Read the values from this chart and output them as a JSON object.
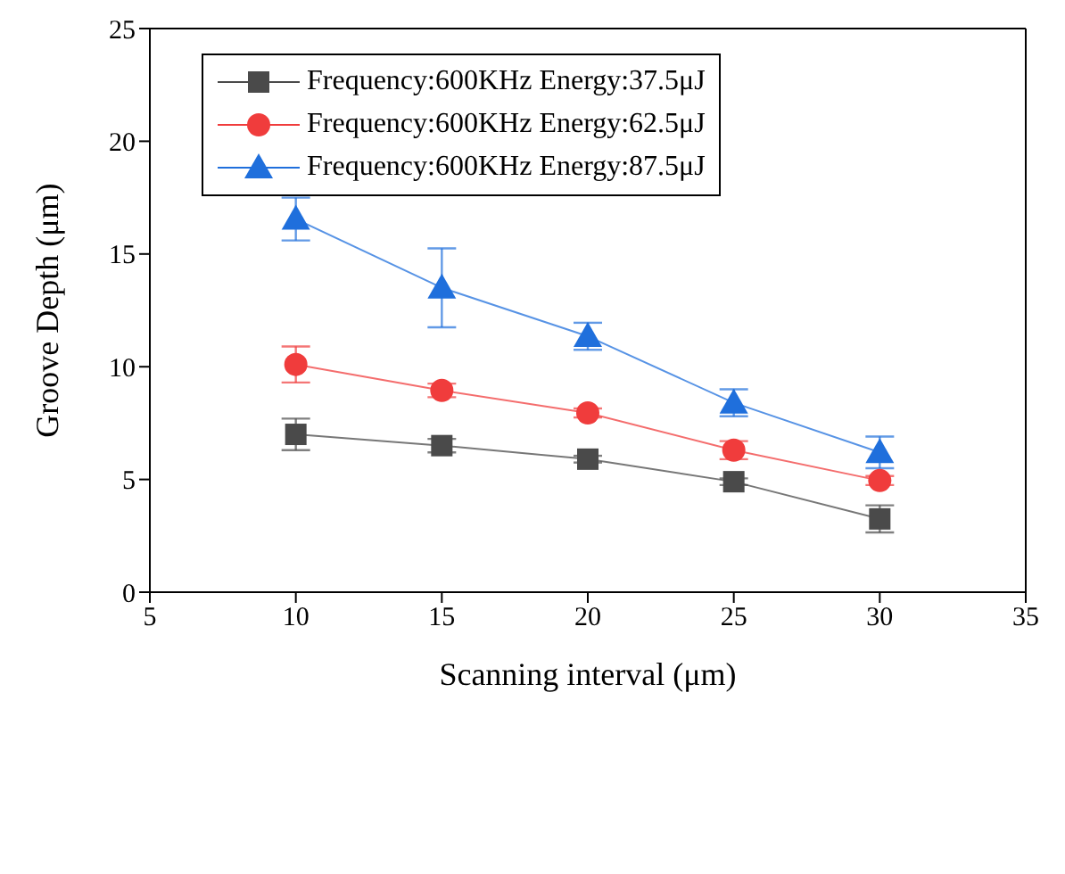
{
  "chart_data": {
    "type": "line",
    "xlabel": "Scanning interval (μm)",
    "ylabel": "Groove Depth (μm)",
    "x": [
      10,
      15,
      20,
      25,
      30
    ],
    "xlim": [
      5,
      35
    ],
    "xticks": [
      5,
      10,
      15,
      20,
      25,
      30,
      35
    ],
    "ylim": [
      0,
      25
    ],
    "yticks": [
      0,
      5,
      10,
      15,
      20,
      25
    ],
    "grid": false,
    "legend": "top left",
    "series": [
      {
        "name": "Frequency:600KHz Energy:37.5μJ",
        "color": "#4a4a4a",
        "marker": "square",
        "values": [
          7.0,
          6.5,
          5.9,
          4.9,
          3.25
        ],
        "errors": [
          0.7,
          0.3,
          0.15,
          0.15,
          0.6
        ]
      },
      {
        "name": "Frequency:600KHz Energy:62.5μJ",
        "color": "#f03c3c",
        "marker": "circle",
        "values": [
          10.1,
          8.95,
          7.95,
          6.3,
          4.95
        ],
        "errors": [
          0.8,
          0.3,
          0.2,
          0.4,
          0.2
        ]
      },
      {
        "name": "Frequency:600KHz Energy:87.5μJ",
        "color": "#1f6fdc",
        "marker": "triangle",
        "values": [
          16.55,
          13.5,
          11.35,
          8.4,
          6.2
        ],
        "errors": [
          0.95,
          1.75,
          0.6,
          0.6,
          0.7
        ]
      }
    ]
  }
}
